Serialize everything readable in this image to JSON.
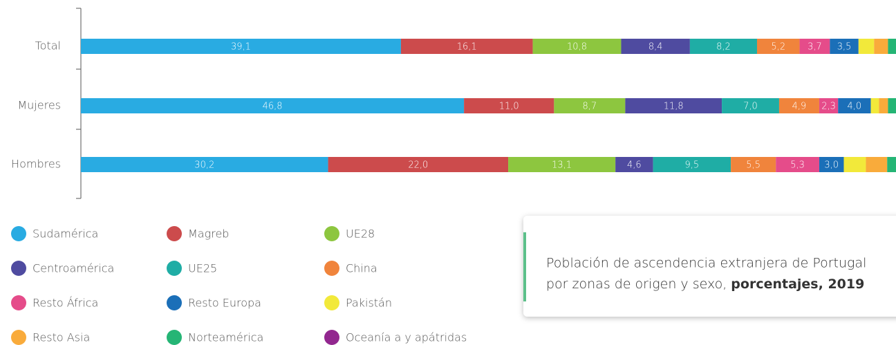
{
  "chart_data": {
    "type": "stacked-barh",
    "title": [
      "Población de ascendencia extranjera de Portugal",
      "por zonas de origen y sexo,",
      "porcentajes, 2019"
    ],
    "categories": [
      "Total",
      "Mujeres",
      "Hombres"
    ],
    "xlim": [
      0,
      100
    ],
    "legend": "bottom",
    "series": [
      {
        "name": "Sudamérica",
        "color": "#29abe2",
        "values": [
          39.1,
          46.8,
          30.2
        ],
        "value_labels": [
          "39,1",
          "46,8",
          "30,2"
        ]
      },
      {
        "name": "Magreb",
        "color": "#cc4b4c",
        "values": [
          16.1,
          11.0,
          22.0
        ],
        "value_labels": [
          "16,1",
          "11,0",
          "22,0"
        ]
      },
      {
        "name": "UE28",
        "color": "#8dc63f",
        "values": [
          10.8,
          8.7,
          13.1
        ],
        "value_labels": [
          "10,8",
          "8,7",
          "13,1"
        ]
      },
      {
        "name": "Centroamérica",
        "color": "#4f4ba0",
        "values": [
          8.4,
          11.8,
          4.6
        ],
        "value_labels": [
          "8,4",
          "11,8",
          "4,6"
        ]
      },
      {
        "name": "UE25",
        "color": "#1fada5",
        "values": [
          8.2,
          7.0,
          9.5
        ],
        "value_labels": [
          "8,2",
          "7,0",
          "9,5"
        ]
      },
      {
        "name": "China",
        "color": "#f0843c",
        "values": [
          5.2,
          4.9,
          5.5
        ],
        "value_labels": [
          "5,2",
          "4,9",
          "5,5"
        ]
      },
      {
        "name": "Resto África",
        "color": "#e54c8a",
        "values": [
          3.7,
          2.3,
          5.3
        ],
        "value_labels": [
          "3,7",
          "2,3",
          "5,3"
        ]
      },
      {
        "name": "Resto Europa",
        "color": "#1b6fb8",
        "values": [
          3.5,
          4.0,
          3.0
        ],
        "value_labels": [
          "3,5",
          "4,0",
          "3,0"
        ]
      },
      {
        "name": "Pakistán",
        "color": "#f2e93a",
        "values": [
          1.9,
          1.0,
          2.7
        ],
        "value_labels": [
          null,
          null,
          null
        ]
      },
      {
        "name": "Resto Asia",
        "color": "#f9ab3b",
        "values": [
          1.7,
          1.1,
          2.6
        ],
        "value_labels": [
          null,
          null,
          null
        ]
      },
      {
        "name": "Norteamérica",
        "color": "#25b575",
        "values": [
          1.2,
          1.2,
          1.3
        ],
        "value_labels": [
          null,
          null,
          null
        ]
      },
      {
        "name": "Oceanía a y apátridas",
        "color": "#92278f",
        "values": [
          0.2,
          0.2,
          0.2
        ],
        "value_labels": [
          null,
          null,
          null
        ]
      }
    ]
  }
}
